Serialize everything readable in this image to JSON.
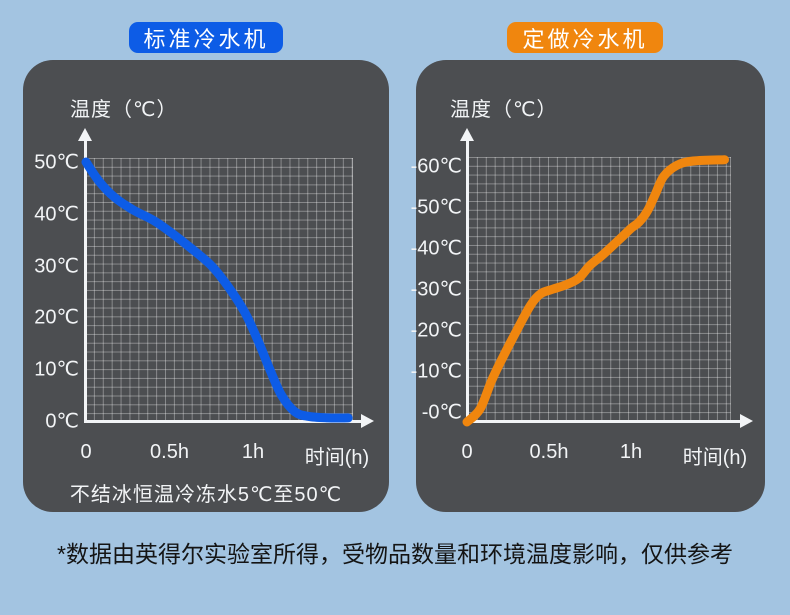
{
  "page": {
    "background_color": "#a3c4e1",
    "panel_color": "#4c4e51",
    "footer_note": "*数据由英得尔实验室所得，受物品数量和环境温度影响，仅供参考"
  },
  "chart_data": [
    {
      "id": "standard-chiller",
      "type": "line",
      "header": "标准冷水机",
      "header_color": "#0d5ce6",
      "line_color": "#0d5ce6",
      "axis_title": "温度（℃）",
      "x_axis_label": "时间(h)",
      "caption": "不结冰恒温冷冻水5℃至50℃",
      "grid": true,
      "xlim_hours": [
        0,
        1.6
      ],
      "ylim": [
        0,
        50
      ],
      "x_ticks": [
        {
          "label": "0",
          "t": 0
        },
        {
          "label": "0.5h",
          "t": 0.5
        },
        {
          "label": "1h",
          "t": 1
        }
      ],
      "y_ticks": [
        {
          "label": "50℃",
          "value": 50
        },
        {
          "label": "40℃",
          "value": 40
        },
        {
          "label": "30℃",
          "value": 30
        },
        {
          "label": "20℃",
          "value": 20
        },
        {
          "label": "10℃",
          "value": 10
        },
        {
          "label": "0℃",
          "value": 0
        }
      ],
      "series": [
        {
          "points": [
            [
              0,
              50
            ],
            [
              0.08,
              46.2
            ],
            [
              0.17,
              43.2
            ],
            [
              0.28,
              40.8
            ],
            [
              0.4,
              38.8
            ],
            [
              0.5,
              36.6
            ],
            [
              0.62,
              33.6
            ],
            [
              0.75,
              30
            ],
            [
              0.85,
              26
            ],
            [
              0.95,
              21
            ],
            [
              1.03,
              15.5
            ],
            [
              1.1,
              10
            ],
            [
              1.17,
              5
            ],
            [
              1.25,
              1.8
            ],
            [
              1.33,
              0.9
            ],
            [
              1.45,
              0.6
            ],
            [
              1.57,
              0.6
            ]
          ]
        }
      ]
    },
    {
      "id": "custom-chiller",
      "type": "line",
      "header": "定做冷水机",
      "header_color": "#f0860e",
      "line_color": "#f0860e",
      "axis_title": "温度（℃）",
      "x_axis_label": "时间(h)",
      "caption": "",
      "grid": true,
      "xlim_hours": [
        0,
        1.6
      ],
      "ylim": [
        -60,
        0
      ],
      "x_ticks": [
        {
          "label": "0",
          "t": 0
        },
        {
          "label": "0.5h",
          "t": 0.5
        },
        {
          "label": "1h",
          "t": 1
        }
      ],
      "y_ticks": [
        {
          "label": "-60℃",
          "value": -60
        },
        {
          "label": "-50℃",
          "value": -50
        },
        {
          "label": "-40℃",
          "value": -40
        },
        {
          "label": "-30℃",
          "value": -30
        },
        {
          "label": "-20℃",
          "value": -20
        },
        {
          "label": "-10℃",
          "value": -10
        },
        {
          "label": "-0℃",
          "value": 0
        }
      ],
      "series": [
        {
          "points": [
            [
              0,
              0
            ],
            [
              0.08,
              -3
            ],
            [
              0.15,
              -9.5
            ],
            [
              0.22,
              -15
            ],
            [
              0.31,
              -21.5
            ],
            [
              0.39,
              -27
            ],
            [
              0.45,
              -29.5
            ],
            [
              0.52,
              -30.5
            ],
            [
              0.6,
              -31.5
            ],
            [
              0.68,
              -33
            ],
            [
              0.75,
              -36
            ],
            [
              0.83,
              -38.5
            ],
            [
              0.93,
              -42
            ],
            [
              1.0,
              -44.5
            ],
            [
              1.05,
              -46
            ],
            [
              1.1,
              -48.5
            ],
            [
              1.15,
              -52.5
            ],
            [
              1.2,
              -56.5
            ],
            [
              1.28,
              -59
            ],
            [
              1.38,
              -60
            ],
            [
              1.57,
              -60.3
            ]
          ]
        }
      ]
    }
  ]
}
